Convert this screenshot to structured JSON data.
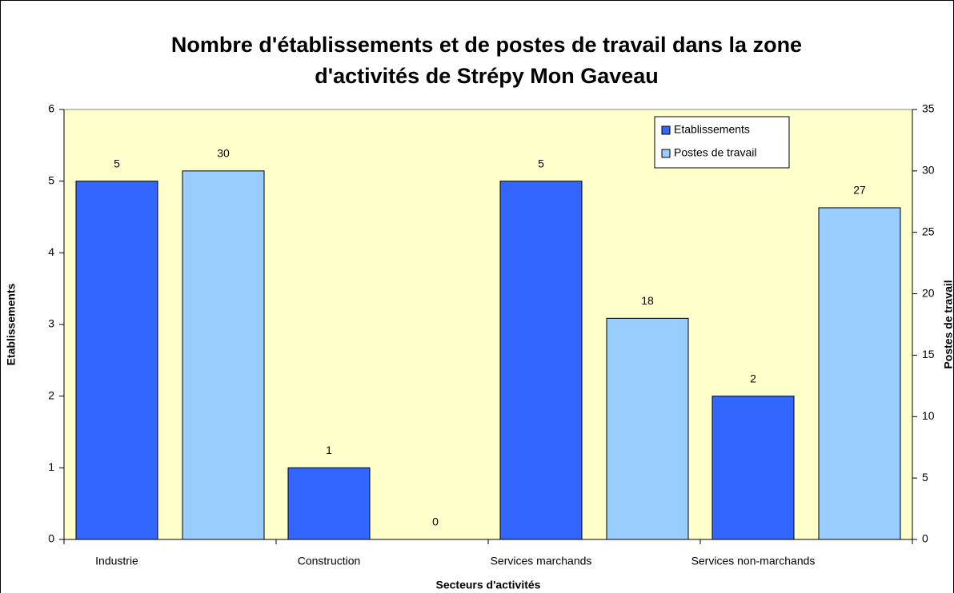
{
  "chart_data": {
    "type": "bar",
    "title": [
      "Nombre d'établissements et de postes de travail dans la zone",
      "d'activités de Strépy Mon Gaveau"
    ],
    "x_label": "Secteurs d'activités",
    "y_label": "Etablissements",
    "y2_label": "Postes de travail",
    "categories": [
      "Industrie",
      "Construction",
      "Services marchands",
      "Services non-marchands"
    ],
    "series": [
      {
        "name": "Etablissements",
        "color": "#3366ff",
        "values": [
          5,
          1,
          5,
          2
        ]
      },
      {
        "name": "Postes de travail",
        "color": "#99ccff",
        "values": [
          30,
          0,
          18,
          27
        ],
        "axis": "y2"
      }
    ],
    "ylim": [
      0,
      6
    ],
    "yticks": [
      0,
      1,
      2,
      3,
      4,
      5,
      6
    ],
    "y2lim": [
      0,
      35
    ],
    "y2ticks": [
      0,
      5,
      10,
      15,
      20,
      25,
      30,
      35
    ],
    "grid": false,
    "legend": "top-right",
    "plot_background": "#ffffcc"
  }
}
